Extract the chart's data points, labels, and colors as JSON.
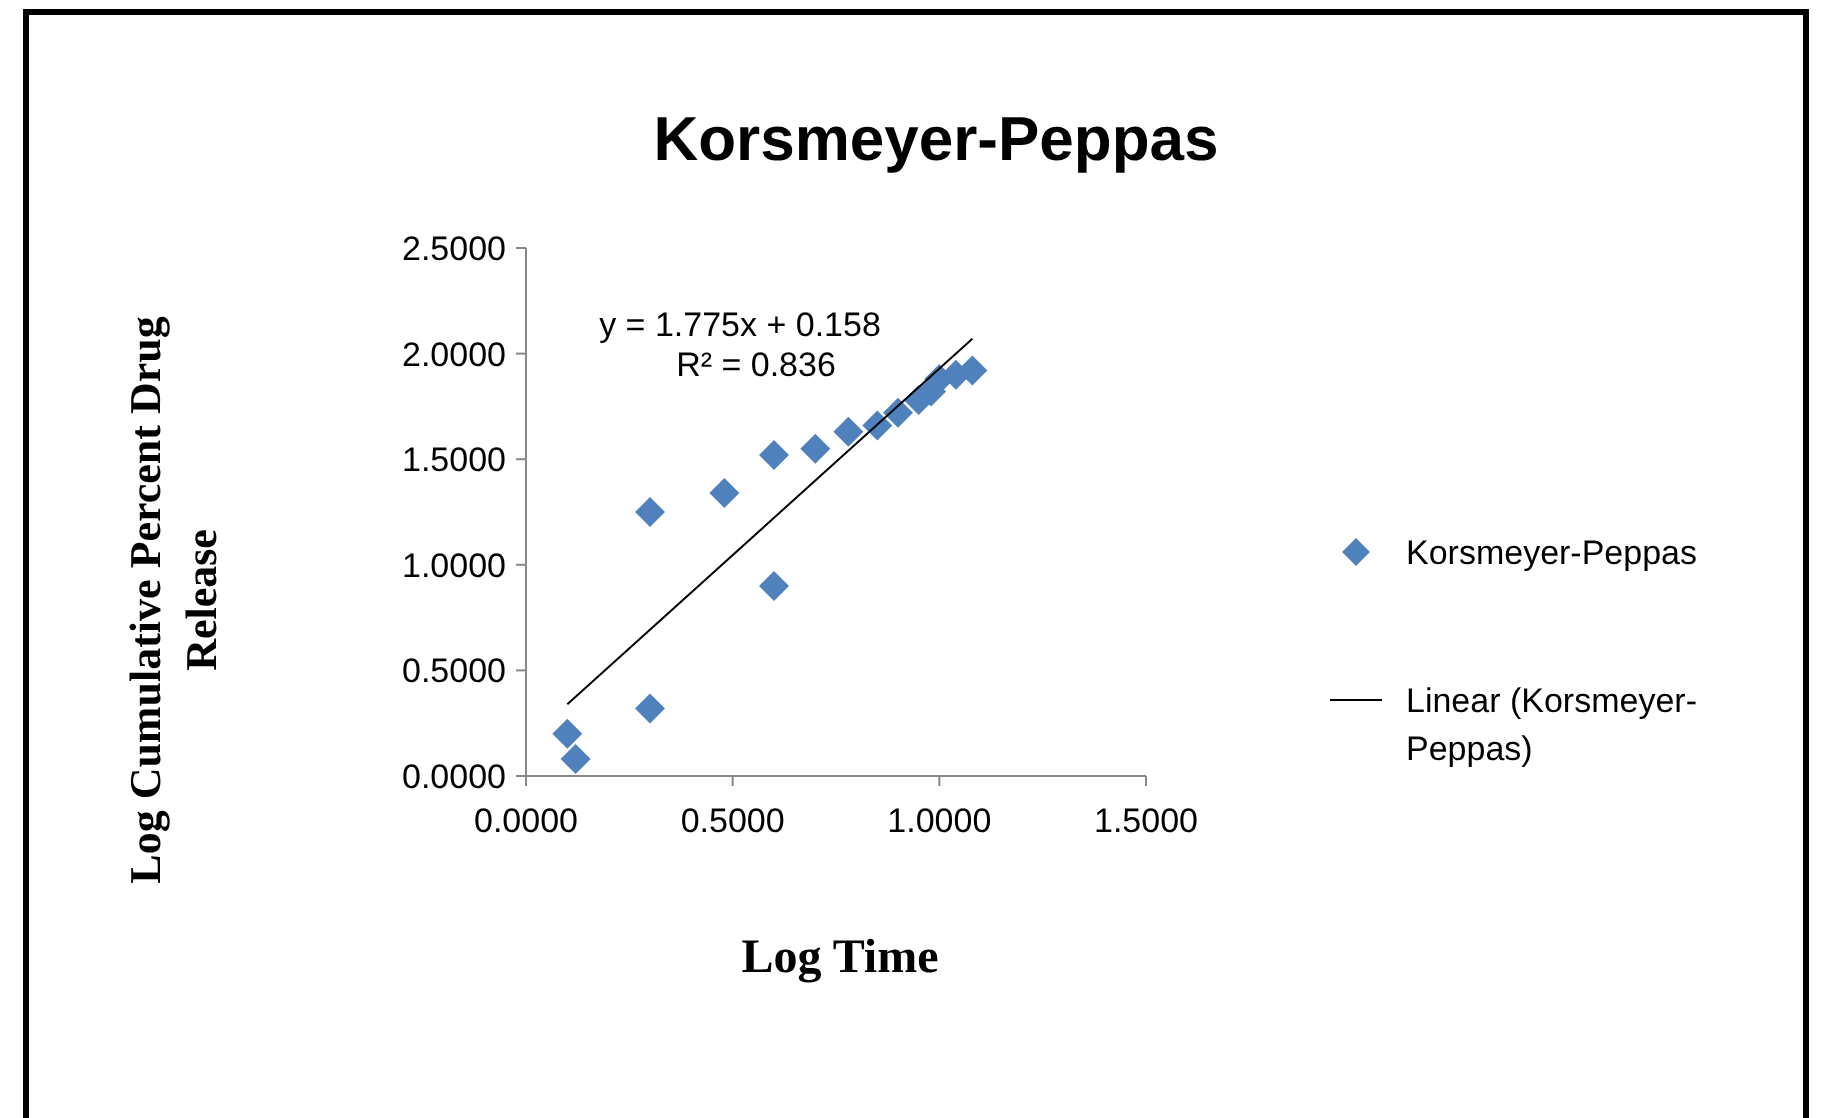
{
  "chart_data": {
    "type": "scatter",
    "title": "Korsmeyer-Peppas",
    "xlabel": "Log Time",
    "ylabel": "Log Cumulative Percent Drug Release",
    "xlim": [
      0,
      1.5
    ],
    "xticks": [
      {
        "value": 0,
        "label": "0.0000"
      },
      {
        "value": 0.5,
        "label": "0.5000"
      },
      {
        "value": 1,
        "label": "1.0000"
      },
      {
        "value": 1.5,
        "label": "1.5000"
      }
    ],
    "ylim": [
      0,
      2.5
    ],
    "yticks": [
      {
        "value": 0,
        "label": "0.0000"
      },
      {
        "value": 0.5,
        "label": "0.5000"
      },
      {
        "value": 1,
        "label": "1.0000"
      },
      {
        "value": 1.5,
        "label": "1.5000"
      },
      {
        "value": 2,
        "label": "2.0000"
      },
      {
        "value": 2.5,
        "label": "2.5000"
      }
    ],
    "legend": "right",
    "grid": false,
    "series": [
      {
        "name": "Korsmeyer-Peppas",
        "marker": "diamond",
        "color": "#4f81bd",
        "x": [
          0.1,
          0.12,
          0.3,
          0.3,
          0.48,
          0.6,
          0.6,
          0.7,
          0.78,
          0.85,
          0.9,
          0.95,
          0.98,
          1.0,
          1.04,
          1.08
        ],
        "values": [
          0.2,
          0.08,
          0.32,
          1.25,
          1.34,
          1.52,
          0.9,
          1.55,
          1.63,
          1.66,
          1.72,
          1.78,
          1.82,
          1.88,
          1.9,
          1.92
        ]
      },
      {
        "name": "Linear (Korsmeyer-Peppas)",
        "type": "line",
        "color": "#000000",
        "x": [
          0.1,
          1.08
        ],
        "values": [
          0.34,
          2.07
        ]
      }
    ],
    "annotations": [
      "y = 1.775x + 0.158",
      "R² = 0.836"
    ]
  }
}
